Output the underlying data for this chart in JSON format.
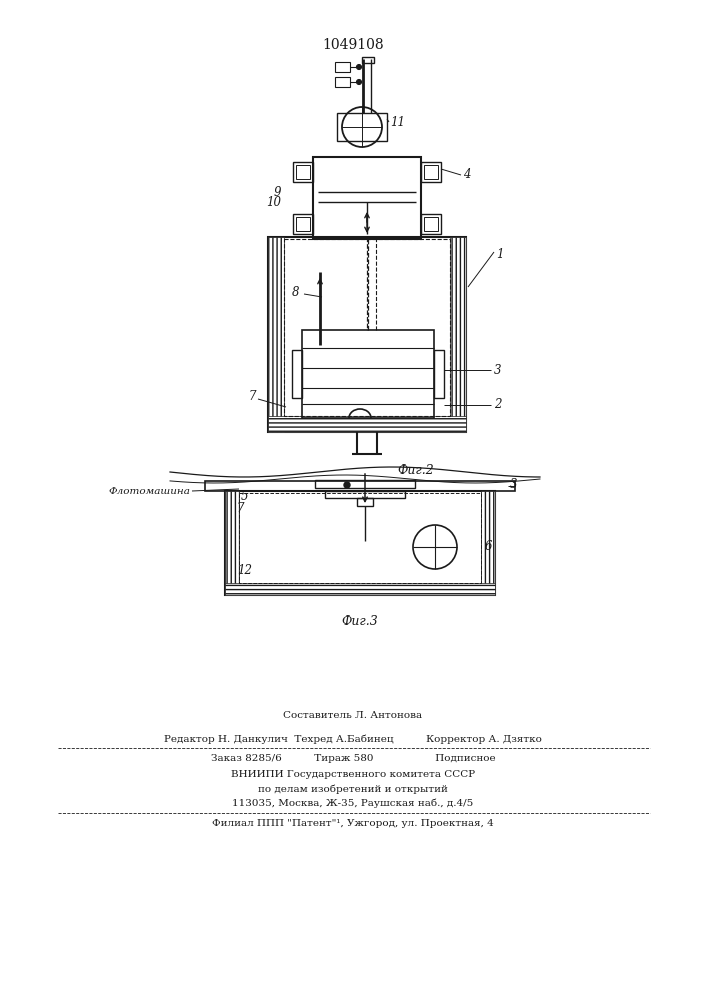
{
  "patent_number": "1049108",
  "fig2_label": "Фиг.2",
  "fig3_label": "Фиг.3",
  "fig3_flotomachine_label": "Флотомашина",
  "background_color": "#ffffff",
  "line_color": "#1a1a1a",
  "footer_line1": "Составитель Л. Антонова",
  "footer_line2": "Редактор Н. Данкулич  Техред А.Бабинец          Корректор А. Дзятко",
  "footer_line3": "Заказ 8285/6          Тираж 580                   Подписное",
  "footer_line4": "ВНИИПИ Государственного комитета СССР",
  "footer_line5": "по делам изобретений и открытий",
  "footer_line6": "113035, Москва, Ж-35, Раушская наб., д.4/5",
  "footer_line7": "Филиал ППП \"Патент\"¹, Ужгород, ул. Проектная, 4"
}
